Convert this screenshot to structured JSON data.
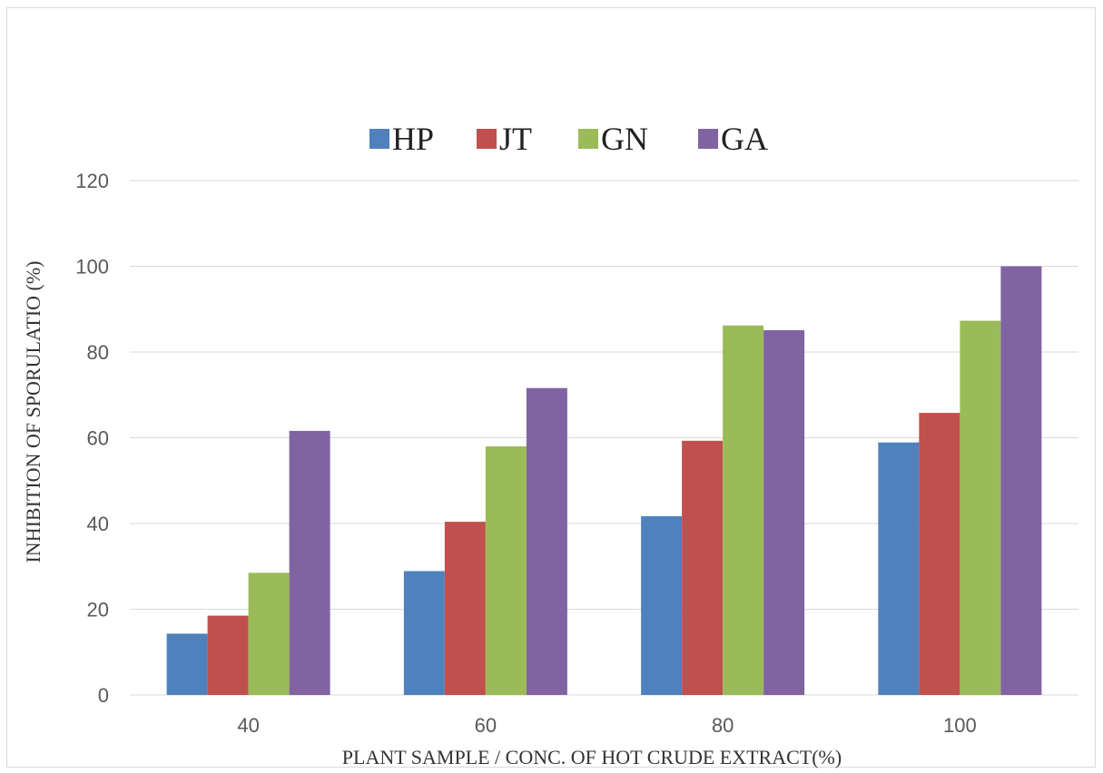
{
  "chart_data": {
    "type": "bar",
    "categories": [
      "40",
      "60",
      "80",
      "100"
    ],
    "series": [
      {
        "name": "HP",
        "color": "#4f81bd",
        "values": [
          14.3,
          28.9,
          41.7,
          58.9
        ]
      },
      {
        "name": "JT",
        "color": "#c0504d",
        "values": [
          18.5,
          40.4,
          59.3,
          65.8
        ]
      },
      {
        "name": "GN",
        "color": "#9bbb59",
        "values": [
          28.5,
          58.0,
          86.2,
          87.3
        ]
      },
      {
        "name": "GA",
        "color": "#8064a2",
        "values": [
          61.6,
          71.6,
          85.1,
          100.0
        ]
      }
    ],
    "title": "",
    "xlabel": "PLANT SAMPLE / CONC. OF HOT CRUDE EXTRACT(%)",
    "ylabel": "INHIBITION OF SPORULATIO (%)",
    "ylim": [
      0,
      120
    ],
    "yticks": [
      0,
      20,
      40,
      60,
      80,
      100,
      120
    ],
    "grid": true,
    "legend": "top-center",
    "gridColor": "#d9d9d9"
  }
}
